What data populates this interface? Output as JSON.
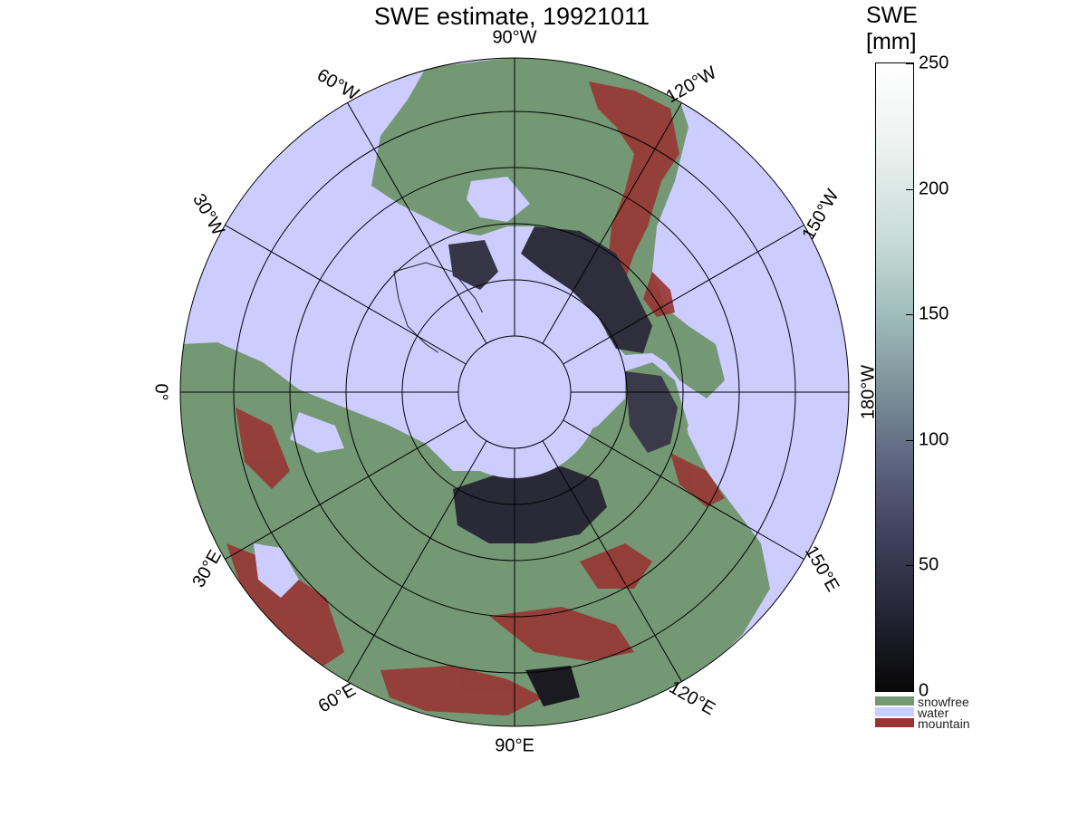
{
  "title": "SWE estimate, 19921011",
  "colorbar": {
    "title_line1": "SWE",
    "title_line2": "[mm]",
    "ticks": [
      "250",
      "200",
      "150",
      "100",
      "50",
      "0"
    ],
    "tick_values": [
      250,
      200,
      150,
      100,
      50,
      0
    ],
    "range": [
      0,
      250
    ],
    "gradient_colors": [
      "#ffffff",
      "#c9dcd8",
      "#7d9198",
      "#3e3f5a",
      "#080808"
    ]
  },
  "legend": [
    {
      "label": "snowfree",
      "color": "#739873"
    },
    {
      "label": "water",
      "color": "#ccccff"
    },
    {
      "label": "mountain",
      "color": "#983533"
    }
  ],
  "map": {
    "projection": "north polar stereographic",
    "ocean_color": "#ccccff",
    "land_color": "#739873",
    "mountain_color": "#983533",
    "snow_color": "#2e2e3a",
    "lon_labels": [
      {
        "text": "90°W",
        "lon": -90
      },
      {
        "text": "120°W",
        "lon": -120
      },
      {
        "text": "150°W",
        "lon": -150
      },
      {
        "text": "180°W",
        "lon": 180
      },
      {
        "text": "150°E",
        "lon": 150
      },
      {
        "text": "120°E",
        "lon": 120
      },
      {
        "text": "90°E",
        "lon": 90
      },
      {
        "text": "60°E",
        "lon": 60
      },
      {
        "text": "30°E",
        "lon": 30
      },
      {
        "text": "0°",
        "lon": 0
      },
      {
        "text": "30°W",
        "lon": -30
      },
      {
        "text": "60°W",
        "lon": -60
      }
    ]
  }
}
